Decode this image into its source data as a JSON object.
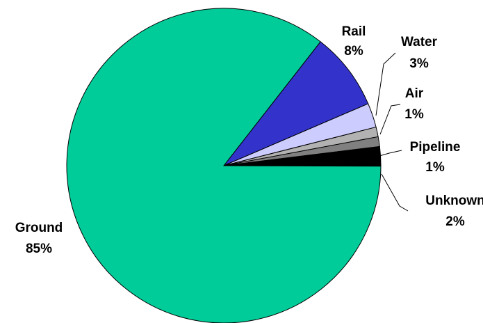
{
  "chart_data": {
    "type": "pie",
    "title": "",
    "start_angle_deg": -52,
    "direction": "clockwise",
    "slices": [
      {
        "label": "Rail",
        "pct_label": "8%",
        "value": 8,
        "color": "#3333CC",
        "label_side": "top"
      },
      {
        "label": "Water",
        "pct_label": "3%",
        "value": 2.5,
        "color": "#CCCCFF",
        "label_side": "right",
        "leader": true
      },
      {
        "label": "Air",
        "pct_label": "1%",
        "value": 1,
        "color": "#B2B2B2",
        "label_side": "right",
        "leader": true
      },
      {
        "label": "Pipeline",
        "pct_label": "1%",
        "value": 1,
        "color": "#808080",
        "label_side": "right",
        "leader": true
      },
      {
        "label": "Unknown",
        "pct_label": "2%",
        "value": 2,
        "color": "#000000",
        "label_side": "right",
        "leader": true
      },
      {
        "label": "Ground",
        "pct_label": "85%",
        "value": 85.5,
        "color": "#00CC99",
        "label_side": "left"
      }
    ]
  }
}
